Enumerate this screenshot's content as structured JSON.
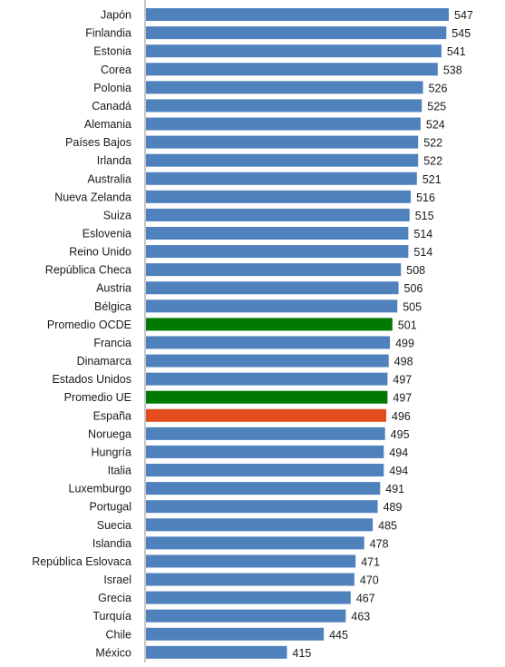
{
  "chart_data": {
    "type": "bar",
    "orientation": "horizontal",
    "title": "",
    "xlabel": "",
    "ylabel": "",
    "grid": false,
    "legend": "none",
    "categories": [
      "Japón",
      "Finlandia",
      "Estonia",
      "Corea",
      "Polonia",
      "Canadá",
      "Alemania",
      "Países Bajos",
      "Irlanda",
      "Australia",
      "Nueva Zelanda",
      "Suiza",
      "Eslovenia",
      "Reino Unido",
      "República Checa",
      "Austria",
      "Bélgica",
      "Promedio OCDE",
      "Francia",
      "Dinamarca",
      "Estados Unidos",
      "Promedio UE",
      "España",
      "Noruega",
      "Hungría",
      "Italia",
      "Luxemburgo",
      "Portugal",
      "Suecia",
      "Islandia",
      "República Eslovaca",
      "Israel",
      "Grecia",
      "Turquía",
      "Chile",
      "México"
    ],
    "values": [
      547,
      545,
      541,
      538,
      526,
      525,
      524,
      522,
      522,
      521,
      516,
      515,
      514,
      514,
      508,
      506,
      505,
      501,
      499,
      498,
      497,
      497,
      496,
      495,
      494,
      494,
      491,
      489,
      485,
      478,
      471,
      470,
      467,
      463,
      445,
      415
    ],
    "xlim": [
      300,
      560
    ],
    "colors": {
      "default": "#4f81bd",
      "average": "#007a00",
      "highlight": "#e34c1d"
    },
    "bar_colors": [
      "default",
      "default",
      "default",
      "default",
      "default",
      "default",
      "default",
      "default",
      "default",
      "default",
      "default",
      "default",
      "default",
      "default",
      "default",
      "default",
      "default",
      "average",
      "default",
      "default",
      "default",
      "average",
      "highlight",
      "default",
      "default",
      "default",
      "default",
      "default",
      "default",
      "default",
      "default",
      "default",
      "default",
      "default",
      "default",
      "default"
    ]
  }
}
